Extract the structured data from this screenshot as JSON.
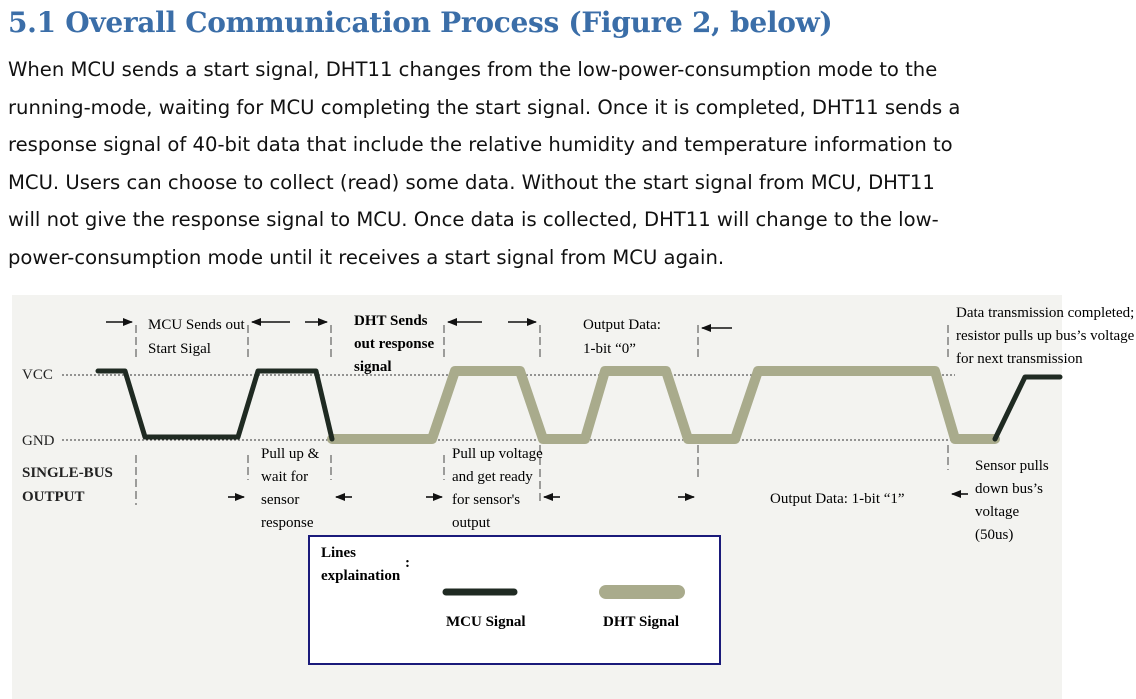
{
  "heading": "5.1 Overall Communication Process (Figure 2, below)",
  "paragraph_lines": [
    "When MCU sends a start signal, DHT11 changes from the low-power-consumption mode to the",
    "running-mode, waiting for MCU completing the start signal. Once it is completed, DHT11 sends a",
    "response signal of 40-bit data that include the relative humidity and temperature information to",
    "MCU. Users can choose to collect (read) some data. Without the start signal from MCU, DHT11",
    "will not give the response signal to MCU. Once data is collected, DHT11 will change to the low-",
    "power-consumption mode until it receives a start signal from MCU again."
  ],
  "figure": {
    "labels": {
      "vcc": "VCC",
      "gnd": "GND",
      "bus_output_1": "SINGLE-BUS",
      "bus_output_2": "OUTPUT",
      "mcu_start_1": "MCU Sends out",
      "mcu_start_2": "Start Sigal",
      "dht_response_1": "DHT Sends",
      "dht_response_2": "out response",
      "dht_response_3": "signal",
      "output_zero_1": "Output Data:",
      "output_zero_2": "1-bit “0”",
      "completed_1": "Data transmission completed;",
      "completed_2": "resistor pulls up bus’s voltage",
      "completed_3": "for next transmission",
      "pullup_wait_1": "Pull up &",
      "pullup_wait_2": "wait for",
      "pullup_wait_3": "sensor",
      "pullup_wait_4": "response",
      "pullup_ready_1": "Pull up voltage",
      "pullup_ready_2": "and get ready",
      "pullup_ready_3": "for sensor's",
      "pullup_ready_4": "output",
      "output_one": "Output Data: 1-bit “1”",
      "sensor_pulls_1": "Sensor pulls",
      "sensor_pulls_2": "down bus’s",
      "sensor_pulls_3": "voltage",
      "sensor_pulls_4": "(50us)"
    },
    "legend": {
      "title_1": "Lines",
      "title_2": "explaination",
      "colon": ":",
      "mcu": "MCU Signal",
      "dht": "DHT Signal"
    },
    "colors": {
      "mcu_signal": "#1f2a22",
      "dht_signal": "#a9ab8c",
      "legend_border": "#1a1a7a",
      "figure_bg": "#f3f3f0"
    }
  }
}
